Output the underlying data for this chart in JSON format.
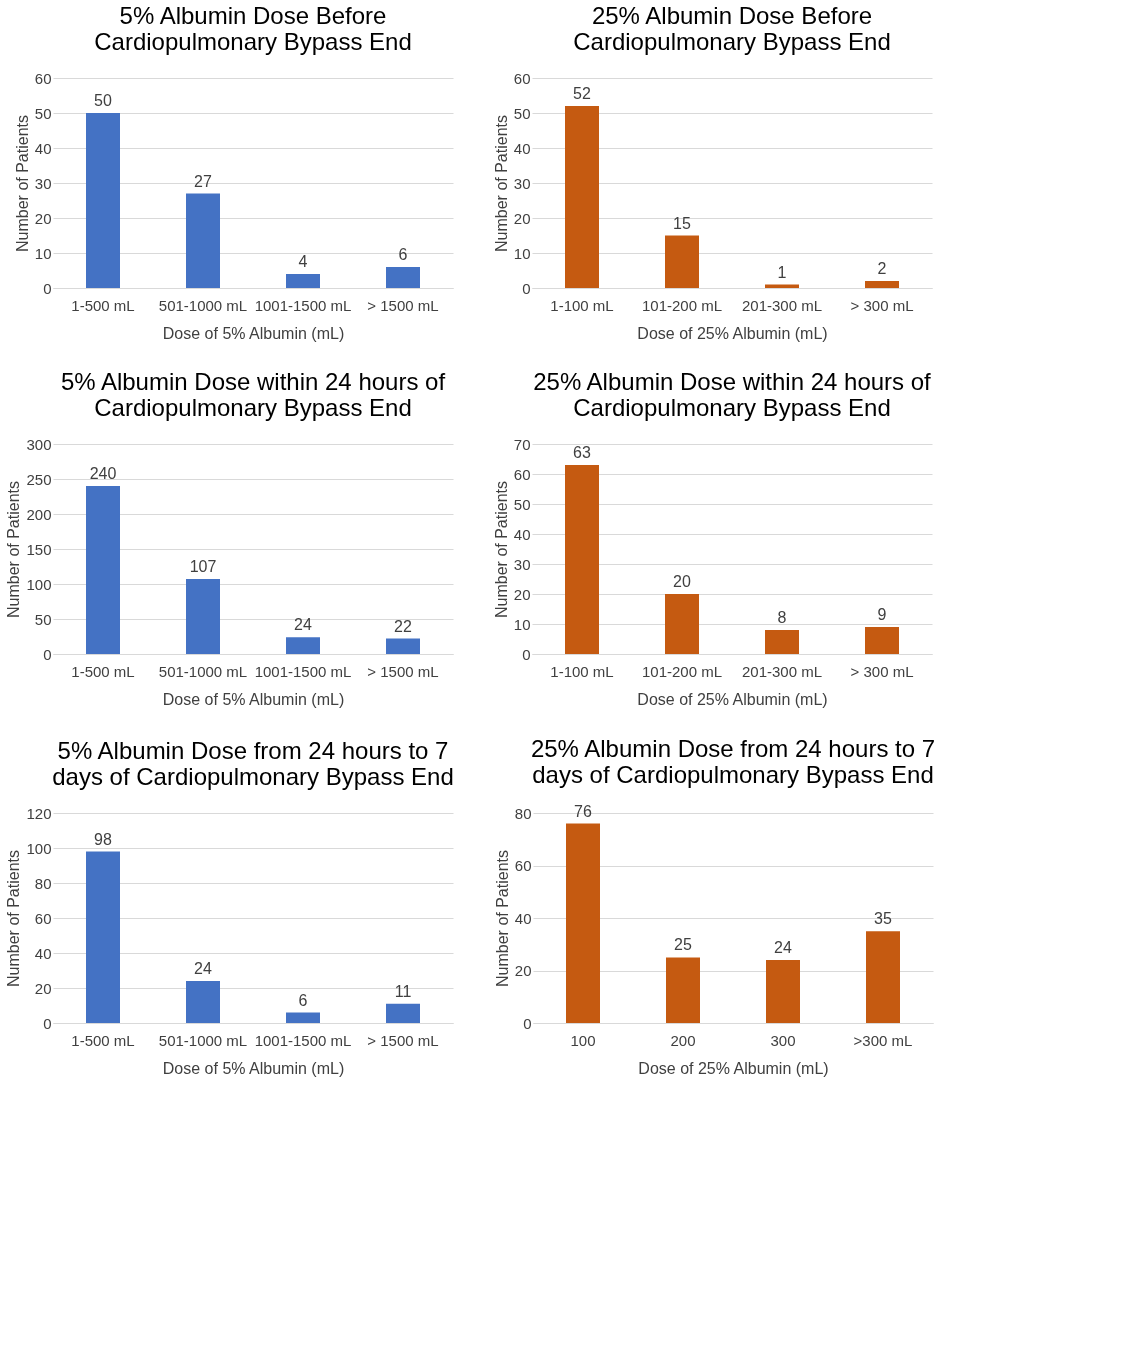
{
  "chart_data": [
    {
      "type": "bar",
      "title": "5% Albumin Dose Before Cardiopulmonary Bypass End",
      "xlabel": "Dose of 5% Albumin (mL)",
      "ylabel": "Number of Patients",
      "categories": [
        "1-500 mL",
        "501-1000 mL",
        "1001-1500 mL",
        "> 1500 mL"
      ],
      "values": [
        50,
        27,
        4,
        6
      ],
      "color": "#4472c4",
      "ylim": [
        0,
        60
      ],
      "yticks": [
        0,
        10,
        20,
        30,
        40,
        50,
        60
      ],
      "grid": "y",
      "data_labels": true
    },
    {
      "type": "bar",
      "title": "25% Albumin Dose Before Cardiopulmonary Bypass End",
      "xlabel": "Dose of 25% Albumin (mL)",
      "ylabel": "Number of Patients",
      "categories": [
        "1-100 mL",
        "101-200 mL",
        "201-300 mL",
        "> 300 mL"
      ],
      "values": [
        52,
        15,
        1,
        2
      ],
      "color": "#c55a11",
      "ylim": [
        0,
        60
      ],
      "yticks": [
        0,
        10,
        20,
        30,
        40,
        50,
        60
      ],
      "grid": "y",
      "data_labels": true
    },
    {
      "type": "bar",
      "title": "5% Albumin Dose within 24 hours of Cardiopulmonary Bypass  End",
      "xlabel": "Dose of 5% Albumin (mL)",
      "ylabel": "Number of Patients",
      "categories": [
        "1-500 mL",
        "501-1000 mL",
        "1001-1500 mL",
        "> 1500 mL"
      ],
      "values": [
        240,
        107,
        24,
        22
      ],
      "color": "#4472c4",
      "ylim": [
        0,
        300
      ],
      "yticks": [
        0,
        50,
        100,
        150,
        200,
        250,
        300
      ],
      "grid": "y",
      "data_labels": true
    },
    {
      "type": "bar",
      "title": "25% Albumin Dose within 24 hours of Cardiopulmonary Bypass End",
      "xlabel": "Dose of 25% Albumin (mL)",
      "ylabel": "Number of Patients",
      "categories": [
        "1-100 mL",
        "101-200 mL",
        "201-300 mL",
        "> 300 mL"
      ],
      "values": [
        63,
        20,
        8,
        9
      ],
      "color": "#c55a11",
      "ylim": [
        0,
        70
      ],
      "yticks": [
        0,
        10,
        20,
        30,
        40,
        50,
        60,
        70
      ],
      "grid": "y",
      "data_labels": true
    },
    {
      "type": "bar",
      "title": "5% Albumin Dose from 24 hours to 7 days of Cardiopulmonary Bypass End",
      "xlabel": "Dose of 5% Albumin (mL)",
      "ylabel": "Number of Patients",
      "categories": [
        "1-500 mL",
        "501-1000 mL",
        "1001-1500 mL",
        "> 1500 mL"
      ],
      "values": [
        98,
        24,
        6,
        11
      ],
      "color": "#4472c4",
      "ylim": [
        0,
        120
      ],
      "yticks": [
        0,
        20,
        40,
        60,
        80,
        100,
        120
      ],
      "grid": "y",
      "data_labels": true
    },
    {
      "type": "bar",
      "title": "25% Albumin Dose from 24 hours to 7 days of Cardiopulmonary Bypass End",
      "xlabel": "Dose of 25% Albumin (mL)",
      "ylabel": "Number of Patients",
      "categories": [
        "100",
        "200",
        "300",
        ">300 mL"
      ],
      "values": [
        76,
        25,
        24,
        35
      ],
      "color": "#c55a11",
      "ylim": [
        0,
        80
      ],
      "yticks": [
        0,
        20,
        40,
        60,
        80
      ],
      "grid": "y",
      "data_labels": true
    }
  ]
}
